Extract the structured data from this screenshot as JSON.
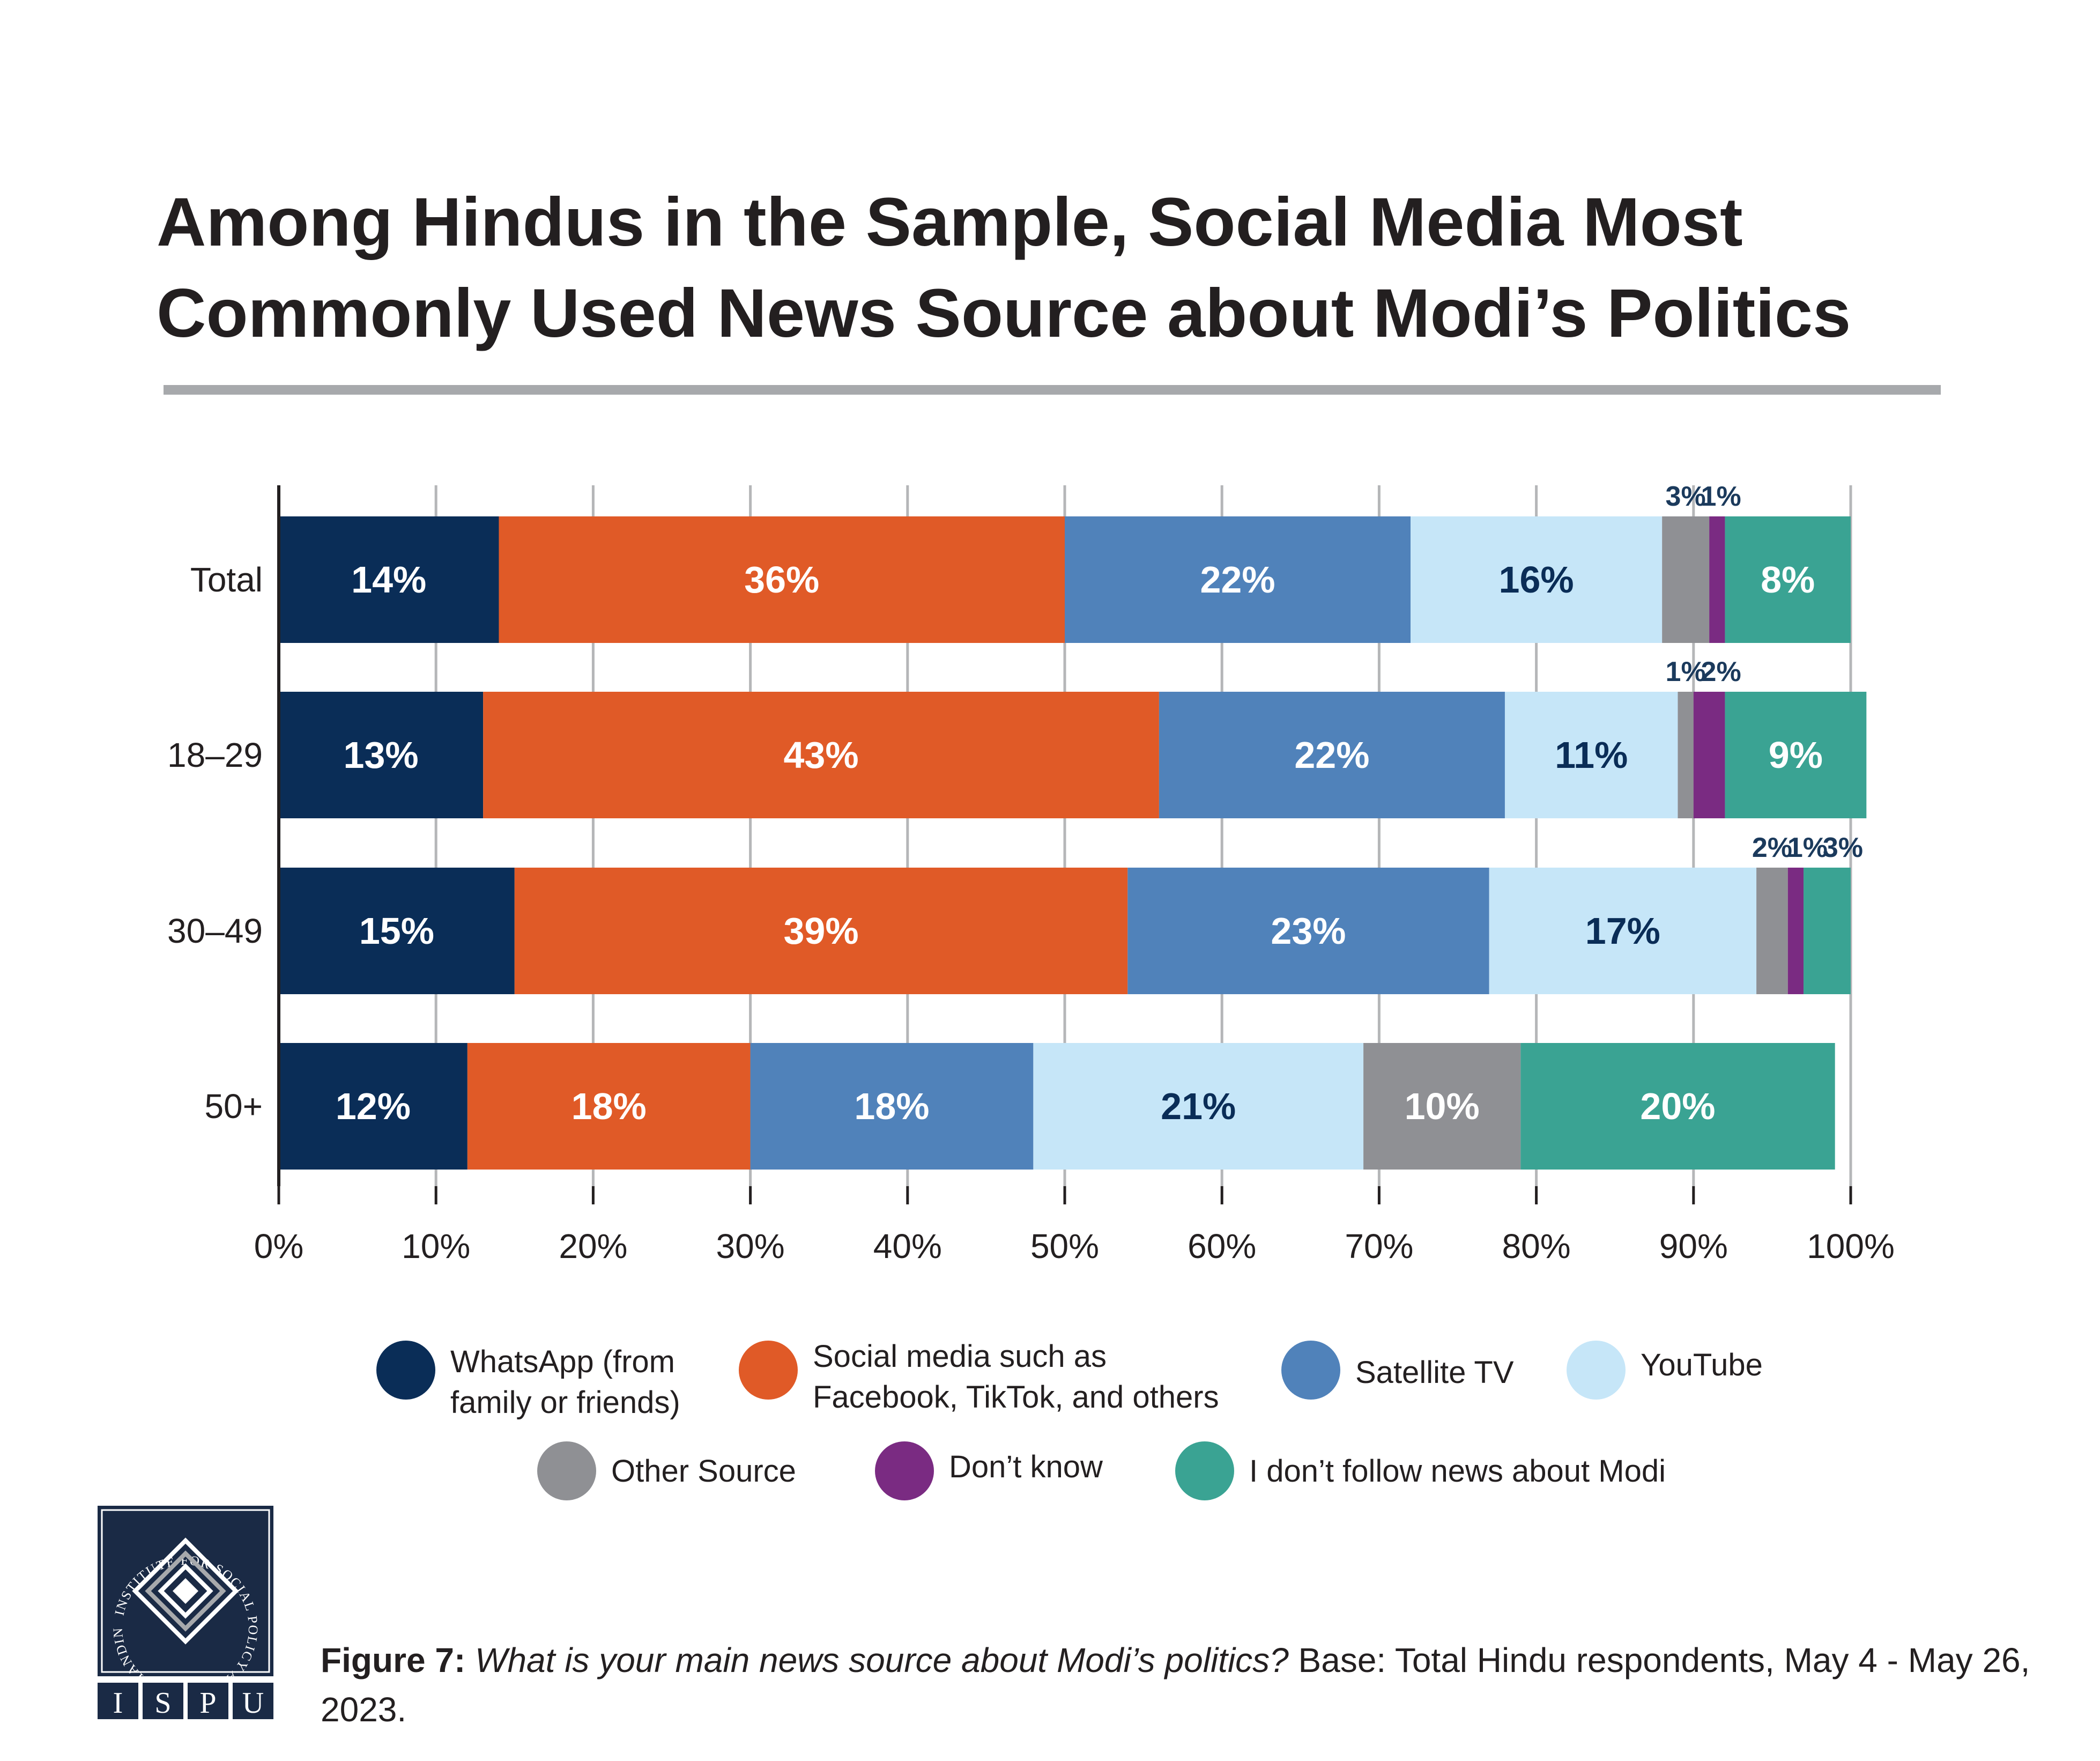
{
  "title": "Among Hindus in the Sample, Social Media Most Commonly Used News Source about Modi’s Politics",
  "chart_data": {
    "type": "bar",
    "orientation": "horizontal",
    "stacked": true,
    "categories": [
      "Total",
      "18–29",
      "30–49",
      "50+"
    ],
    "series": [
      {
        "name": "WhatsApp (from family or friends)",
        "color": "#0a2d57",
        "values": [
          14,
          13,
          15,
          12
        ],
        "labels": [
          "14%",
          "13%",
          "15%",
          "12%"
        ],
        "label_color": "#ffffff"
      },
      {
        "name": "Social media such as Facebook, TikTok, and others",
        "color": "#e05a27",
        "values": [
          36,
          43,
          39,
          18
        ],
        "labels": [
          "36%",
          "43%",
          "39%",
          "18%"
        ],
        "label_color": "#ffffff"
      },
      {
        "name": "Satellite TV",
        "color": "#5082ba",
        "values": [
          22,
          22,
          23,
          18
        ],
        "labels": [
          "22%",
          "22%",
          "23%",
          "18%"
        ],
        "label_color": "#ffffff"
      },
      {
        "name": "YouTube",
        "color": "#c6e6f8",
        "values": [
          16,
          11,
          17,
          21
        ],
        "labels": [
          "16%",
          "11%",
          "17%",
          "21%"
        ],
        "label_color": "#0a2d57"
      },
      {
        "name": "Other Source",
        "color": "#8f9094",
        "values": [
          3,
          1,
          2,
          10
        ],
        "labels": [
          "3%",
          "1%",
          "2%",
          "10%"
        ],
        "label_color": "#ffffff"
      },
      {
        "name": "Don’t know",
        "color": "#7a2b82",
        "values": [
          1,
          2,
          1,
          0
        ],
        "labels": [
          "1%",
          "2%",
          "1%",
          ""
        ],
        "label_color": "#ffffff"
      },
      {
        "name": "I don’t follow news about Modi",
        "color": "#3aa393",
        "values": [
          8,
          9,
          3,
          20
        ],
        "labels": [
          "8%",
          "9%",
          "3%",
          "20%"
        ],
        "label_color": "#ffffff"
      }
    ],
    "xlim": [
      0,
      100
    ],
    "xticks": [
      "0%",
      "10%",
      "20%",
      "30%",
      "40%",
      "50%",
      "60%",
      "70%",
      "80%",
      "90%",
      "100%"
    ],
    "grid": true,
    "legend_position": "bottom",
    "small_label_color": "#1b3a5c"
  },
  "legend": [
    {
      "label": "WhatsApp (from\nfamily or friends)",
      "color": "#0a2d57"
    },
    {
      "label": "Social media such as\nFacebook, TikTok, and others",
      "color": "#e05a27"
    },
    {
      "label": "Satellite TV",
      "color": "#5082ba"
    },
    {
      "label": "YouTube",
      "color": "#c6e6f8"
    },
    {
      "label": "Other Source",
      "color": "#8f9094"
    },
    {
      "label": "Don’t know",
      "color": "#7a2b82"
    },
    {
      "label": "I don’t follow news about Modi",
      "color": "#3aa393"
    }
  ],
  "logo": {
    "ring_text": "INSTITUTE FOR SOCIAL POLICY AND UNDERSTANDING",
    "letters": [
      "I",
      "S",
      "P",
      "U"
    ],
    "color": "#1a2a45"
  },
  "caption": {
    "figure_label": "Figure 7:",
    "question": "What is your main news source about Modi’s politics?",
    "base": "Base: Total Hindu respondents, May 4 - May 26, 2023."
  }
}
